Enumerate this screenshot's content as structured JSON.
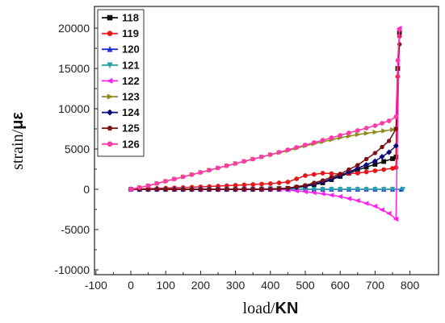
{
  "chart_data": {
    "type": "line",
    "xlabel_main": "load/",
    "xlabel_unit": "KN",
    "ylabel_main": "strain/",
    "ylabel_unit": "με",
    "xlim": [
      -100,
      800
    ],
    "ylim": [
      -10000,
      21000
    ],
    "xticks": [
      -100,
      0,
      100,
      200,
      300,
      400,
      500,
      600,
      700,
      800
    ],
    "yticks": [
      -10000,
      -5000,
      0,
      5000,
      10000,
      15000,
      20000
    ],
    "legend_position": "top-left",
    "grid": false,
    "series": [
      {
        "name": "118",
        "color": "#111111",
        "marker": "square",
        "points": [
          [
            0,
            0
          ],
          [
            100,
            0
          ],
          [
            200,
            0
          ],
          [
            300,
            0
          ],
          [
            400,
            50
          ],
          [
            450,
            120
          ],
          [
            500,
            350
          ],
          [
            550,
            800
          ],
          [
            600,
            1600
          ],
          [
            650,
            2400
          ],
          [
            700,
            3100
          ],
          [
            750,
            3800
          ],
          [
            760,
            4000
          ],
          [
            765,
            15000
          ],
          [
            770,
            19500
          ]
        ]
      },
      {
        "name": "119",
        "color": "#e8161b",
        "marker": "circle",
        "points": [
          [
            0,
            0
          ],
          [
            100,
            150
          ],
          [
            200,
            300
          ],
          [
            300,
            500
          ],
          [
            400,
            700
          ],
          [
            450,
            900
          ],
          [
            500,
            1700
          ],
          [
            550,
            2000
          ],
          [
            600,
            1900
          ],
          [
            650,
            2000
          ],
          [
            700,
            2300
          ],
          [
            750,
            2600
          ],
          [
            760,
            2700
          ],
          [
            765,
            14000
          ],
          [
            770,
            19000
          ]
        ]
      },
      {
        "name": "120",
        "color": "#1f2bd6",
        "marker": "triangle-up",
        "points": [
          [
            0,
            0
          ],
          [
            100,
            0
          ],
          [
            200,
            0
          ],
          [
            300,
            0
          ],
          [
            400,
            0
          ],
          [
            500,
            0
          ],
          [
            600,
            0
          ],
          [
            700,
            0
          ],
          [
            750,
            0
          ],
          [
            775,
            0
          ]
        ]
      },
      {
        "name": "121",
        "color": "#27a0a8",
        "marker": "triangle-down",
        "points": [
          [
            0,
            0
          ],
          [
            100,
            0
          ],
          [
            200,
            0
          ],
          [
            300,
            0
          ],
          [
            400,
            0
          ],
          [
            500,
            0
          ],
          [
            600,
            0
          ],
          [
            700,
            0
          ],
          [
            750,
            0
          ],
          [
            780,
            0
          ]
        ]
      },
      {
        "name": "122",
        "color": "#ff22ee",
        "marker": "triangle-left",
        "points": [
          [
            0,
            0
          ],
          [
            100,
            0
          ],
          [
            200,
            0
          ],
          [
            300,
            0
          ],
          [
            400,
            0
          ],
          [
            450,
            -100
          ],
          [
            500,
            -300
          ],
          [
            550,
            -550
          ],
          [
            600,
            -900
          ],
          [
            650,
            -1400
          ],
          [
            700,
            -2100
          ],
          [
            740,
            -3000
          ],
          [
            760,
            -3700
          ],
          [
            770,
            20000
          ]
        ]
      },
      {
        "name": "123",
        "color": "#8c8c1a",
        "marker": "triangle-right",
        "points": [
          [
            0,
            0
          ],
          [
            50,
            450
          ],
          [
            100,
            1000
          ],
          [
            150,
            1550
          ],
          [
            200,
            2100
          ],
          [
            250,
            2650
          ],
          [
            300,
            3200
          ],
          [
            350,
            3750
          ],
          [
            400,
            4300
          ],
          [
            450,
            4800
          ],
          [
            500,
            5400
          ],
          [
            550,
            5900
          ],
          [
            600,
            6400
          ],
          [
            650,
            6800
          ],
          [
            700,
            7100
          ],
          [
            750,
            7400
          ],
          [
            760,
            7500
          ]
        ]
      },
      {
        "name": "124",
        "color": "#0a0a7a",
        "marker": "diamond",
        "points": [
          [
            0,
            0
          ],
          [
            100,
            0
          ],
          [
            200,
            0
          ],
          [
            300,
            0
          ],
          [
            400,
            0
          ],
          [
            450,
            100
          ],
          [
            500,
            400
          ],
          [
            550,
            900
          ],
          [
            600,
            1700
          ],
          [
            650,
            2600
          ],
          [
            700,
            3500
          ],
          [
            740,
            4600
          ],
          [
            760,
            5400
          ]
        ]
      },
      {
        "name": "125",
        "color": "#7a1010",
        "marker": "hexagon",
        "points": [
          [
            0,
            0
          ],
          [
            100,
            0
          ],
          [
            200,
            0
          ],
          [
            300,
            0
          ],
          [
            400,
            0
          ],
          [
            450,
            150
          ],
          [
            500,
            500
          ],
          [
            550,
            1100
          ],
          [
            600,
            1900
          ],
          [
            650,
            3000
          ],
          [
            700,
            4500
          ],
          [
            740,
            6000
          ],
          [
            760,
            7500
          ],
          [
            765,
            15000
          ],
          [
            770,
            18000
          ]
        ]
      },
      {
        "name": "126",
        "color": "#ff3aa8",
        "marker": "circle",
        "points": [
          [
            0,
            0
          ],
          [
            50,
            450
          ],
          [
            100,
            1000
          ],
          [
            150,
            1550
          ],
          [
            200,
            2100
          ],
          [
            250,
            2650
          ],
          [
            300,
            3200
          ],
          [
            350,
            3750
          ],
          [
            400,
            4300
          ],
          [
            450,
            4900
          ],
          [
            500,
            5500
          ],
          [
            550,
            6100
          ],
          [
            600,
            6700
          ],
          [
            650,
            7300
          ],
          [
            700,
            7900
          ],
          [
            740,
            8500
          ],
          [
            760,
            9000
          ],
          [
            765,
            16000
          ],
          [
            770,
            19800
          ]
        ]
      }
    ]
  }
}
